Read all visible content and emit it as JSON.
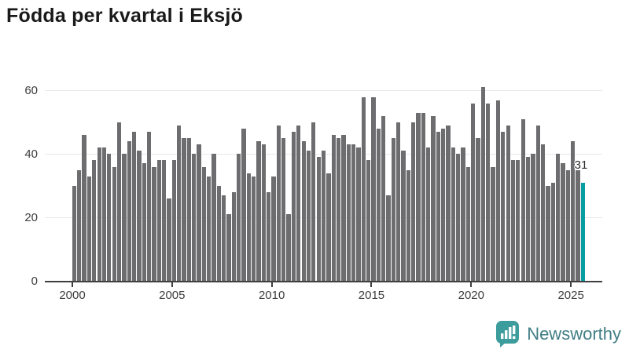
{
  "title": "Födda per kvartal i Eksjö",
  "chart_data": {
    "type": "bar",
    "title": "Födda per kvartal i Eksjö",
    "x_quarterly_from": "2000 Q1",
    "x_quarterly_to": "2025 Q3",
    "values": [
      30,
      35,
      46,
      33,
      38,
      42,
      42,
      40,
      36,
      50,
      40,
      44,
      47,
      41,
      37,
      47,
      36,
      38,
      38,
      26,
      38,
      49,
      45,
      45,
      40,
      43,
      36,
      33,
      40,
      30,
      27,
      21,
      28,
      40,
      48,
      34,
      33,
      44,
      43,
      28,
      33,
      49,
      45,
      21,
      47,
      49,
      44,
      41,
      50,
      39,
      41,
      34,
      46,
      45,
      46,
      43,
      43,
      42,
      58,
      38,
      58,
      48,
      52,
      27,
      45,
      50,
      41,
      35,
      50,
      53,
      53,
      42,
      52,
      47,
      48,
      49,
      42,
      40,
      42,
      36,
      56,
      45,
      61,
      56,
      36,
      57,
      47,
      49,
      38,
      38,
      51,
      39,
      40,
      49,
      43,
      30,
      31,
      40,
      37,
      35,
      44,
      35,
      31
    ],
    "highlight_last_value": 31,
    "last_value_label": "31",
    "bar_color": "#6d6d70",
    "highlight_color": "#089da0",
    "y_ticks": [
      0,
      20,
      40,
      60
    ],
    "x_tick_labels": [
      "2000",
      "2005",
      "2010",
      "2015",
      "2020",
      "2025"
    ],
    "ylim": [
      0,
      62
    ],
    "grid": "horizontal",
    "legend": "none"
  },
  "footer": {
    "brand": "Newsworthy",
    "logo_icon": "bar-chart-speech-bubble-icon",
    "brand_color": "#417e84",
    "icon_color": "#3d9c9c"
  }
}
